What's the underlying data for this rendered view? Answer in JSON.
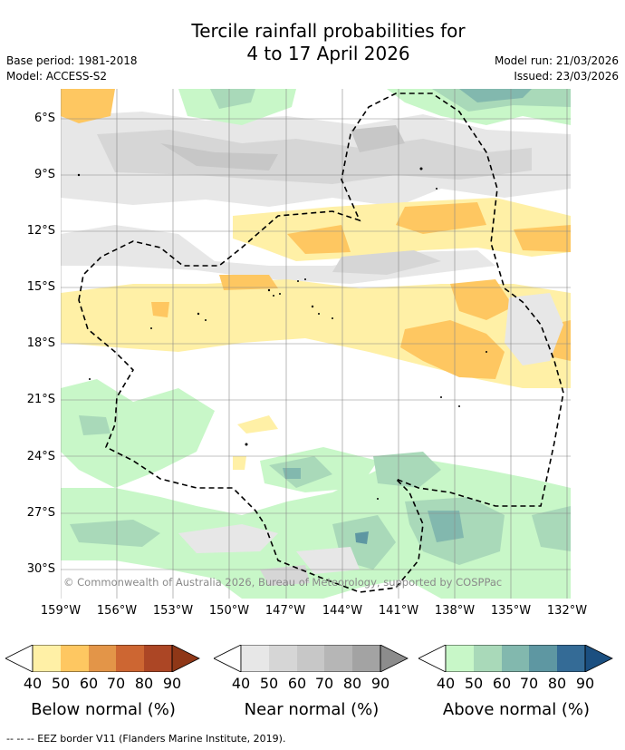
{
  "title_line1": "Tercile rainfall probabilities for",
  "title_line2": "4 to 17 April 2026",
  "base_period": "Base period: 1981-2018",
  "model": "Model: ACCESS-S2",
  "model_run": "Model run: 21/03/2026",
  "issued": "Issued: 23/03/2026",
  "map": {
    "lat_labels": [
      "6°S",
      "9°S",
      "12°S",
      "15°S",
      "18°S",
      "21°S",
      "24°S",
      "27°S",
      "30°S"
    ],
    "lon_labels": [
      "159°W",
      "156°W",
      "153°W",
      "150°W",
      "147°W",
      "144°W",
      "141°W",
      "138°W",
      "135°W",
      "132°W"
    ],
    "copyright": "© Commonwealth of Australia 2026, Bureau of Meteorology, supported by COSPPac"
  },
  "colorbars": [
    {
      "title": "Below normal (%)",
      "ticks": [
        "40",
        "50",
        "60",
        "70",
        "80",
        "90"
      ],
      "colors": [
        "#fff0a6",
        "#fec761",
        "#e39548",
        "#cd6632",
        "#ac4625",
        "#8f3717"
      ]
    },
    {
      "title": "Near normal (%)",
      "ticks": [
        "40",
        "50",
        "60",
        "70",
        "80",
        "90"
      ],
      "colors": [
        "#e7e7e7",
        "#d6d6d6",
        "#c7c7c7",
        "#b6b6b6",
        "#a3a3a3",
        "#8c8c8c"
      ]
    },
    {
      "title": "Above normal (%)",
      "ticks": [
        "40",
        "50",
        "60",
        "70",
        "80",
        "90"
      ],
      "colors": [
        "#c8f7c8",
        "#a9d9b9",
        "#82b8ae",
        "#5e97a2",
        "#346b96",
        "#1b4f80"
      ]
    }
  ],
  "footer": "--  --  -- EEZ border V11 (Flanders Marine Institute, 2019).",
  "colors": {
    "grid": "#888888",
    "eez": "#000000"
  }
}
